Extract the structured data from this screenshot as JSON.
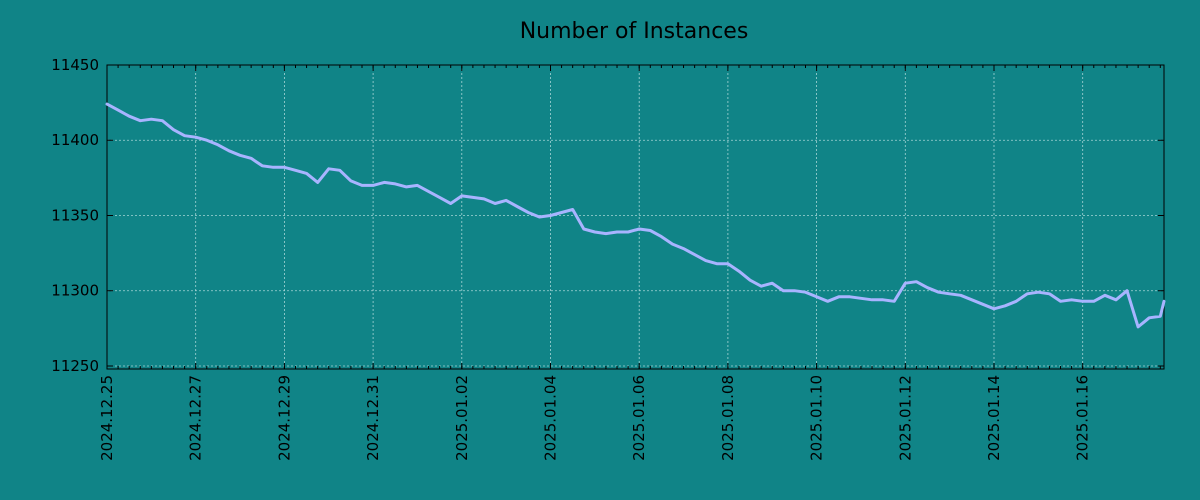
{
  "chart_data": {
    "type": "line",
    "title": "Number of Instances",
    "xlabel": "",
    "ylabel": "",
    "xlim": [
      "2024-12-25 00:00",
      "2025-01-17 20:00"
    ],
    "ylim": [
      11248,
      11450
    ],
    "y_ticks": [
      11250,
      11300,
      11350,
      11400,
      11450
    ],
    "x_ticks": [
      "2024.12.25",
      "2024.12.27",
      "2024.12.29",
      "2024.12.31",
      "2025.01.02",
      "2025.01.04",
      "2025.01.06",
      "2025.01.08",
      "2025.01.10",
      "2025.01.12",
      "2025.01.14",
      "2025.01.16"
    ],
    "grid": true,
    "colors": {
      "background": "#108487",
      "line": "#a8b4ff"
    },
    "series": [
      {
        "x": [
          "2024-12-25 00:00",
          "2024-12-25 06:00",
          "2024-12-25 12:00",
          "2024-12-25 18:00",
          "2024-12-26 00:00",
          "2024-12-26 06:00",
          "2024-12-26 12:00",
          "2024-12-26 18:00",
          "2024-12-27 00:00",
          "2024-12-27 06:00",
          "2024-12-27 12:00",
          "2024-12-27 18:00",
          "2024-12-28 00:00",
          "2024-12-28 06:00",
          "2024-12-28 12:00",
          "2024-12-28 18:00",
          "2024-12-29 00:00",
          "2024-12-29 06:00",
          "2024-12-29 12:00",
          "2024-12-29 18:00",
          "2024-12-30 00:00",
          "2024-12-30 06:00",
          "2024-12-30 12:00",
          "2024-12-30 18:00",
          "2024-12-31 00:00",
          "2024-12-31 06:00",
          "2024-12-31 12:00",
          "2024-12-31 18:00",
          "2025-01-01 00:00",
          "2025-01-01 06:00",
          "2025-01-01 12:00",
          "2025-01-01 18:00",
          "2025-01-02 00:00",
          "2025-01-02 06:00",
          "2025-01-02 12:00",
          "2025-01-02 18:00",
          "2025-01-03 00:00",
          "2025-01-03 06:00",
          "2025-01-03 12:00",
          "2025-01-03 18:00",
          "2025-01-04 00:00",
          "2025-01-04 06:00",
          "2025-01-04 12:00",
          "2025-01-04 18:00",
          "2025-01-05 00:00",
          "2025-01-05 06:00",
          "2025-01-05 12:00",
          "2025-01-05 18:00",
          "2025-01-06 00:00",
          "2025-01-06 06:00",
          "2025-01-06 12:00",
          "2025-01-06 18:00",
          "2025-01-07 00:00",
          "2025-01-07 06:00",
          "2025-01-07 12:00",
          "2025-01-07 18:00",
          "2025-01-08 00:00",
          "2025-01-08 06:00",
          "2025-01-08 12:00",
          "2025-01-08 18:00",
          "2025-01-09 00:00",
          "2025-01-09 06:00",
          "2025-01-09 12:00",
          "2025-01-09 18:00",
          "2025-01-10 00:00",
          "2025-01-10 06:00",
          "2025-01-10 12:00",
          "2025-01-10 18:00",
          "2025-01-11 00:00",
          "2025-01-11 06:00",
          "2025-01-11 12:00",
          "2025-01-11 18:00",
          "2025-01-12 00:00",
          "2025-01-12 06:00",
          "2025-01-12 12:00",
          "2025-01-12 18:00",
          "2025-01-13 00:00",
          "2025-01-13 06:00",
          "2025-01-13 12:00",
          "2025-01-13 18:00",
          "2025-01-14 00:00",
          "2025-01-14 06:00",
          "2025-01-14 12:00",
          "2025-01-14 18:00",
          "2025-01-15 00:00",
          "2025-01-15 06:00",
          "2025-01-15 12:00",
          "2025-01-15 18:00",
          "2025-01-16 00:00",
          "2025-01-16 06:00",
          "2025-01-16 12:00",
          "2025-01-16 18:00",
          "2025-01-17 00:00",
          "2025-01-17 06:00",
          "2025-01-17 12:00",
          "2025-01-17 18:00",
          "2025-01-17 20:00"
        ],
        "values": [
          11424,
          11420,
          11416,
          11413,
          11414,
          11413,
          11407,
          11403,
          11402,
          11400,
          11397,
          11393,
          11390,
          11388,
          11383,
          11382,
          11382,
          11380,
          11378,
          11372,
          11381,
          11380,
          11373,
          11370,
          11370,
          11372,
          11371,
          11369,
          11370,
          11366,
          11362,
          11358,
          11363,
          11362,
          11361,
          11358,
          11360,
          11356,
          11352,
          11349,
          11350,
          11352,
          11354,
          11341,
          11339,
          11338,
          11339,
          11339,
          11341,
          11340,
          11336,
          11331,
          11328,
          11324,
          11320,
          11318,
          11318,
          11313,
          11307,
          11303,
          11305,
          11300,
          11300,
          11299,
          11296,
          11293,
          11296,
          11296,
          11295,
          11294,
          11294,
          11293,
          11305,
          11306,
          11302,
          11299,
          11298,
          11297,
          11294,
          11291,
          11288,
          11290,
          11293,
          11298,
          11299,
          11298,
          11293,
          11294,
          11293,
          11293,
          11297,
          11294,
          11300,
          11276,
          11282,
          11283,
          11293
        ]
      }
    ]
  }
}
